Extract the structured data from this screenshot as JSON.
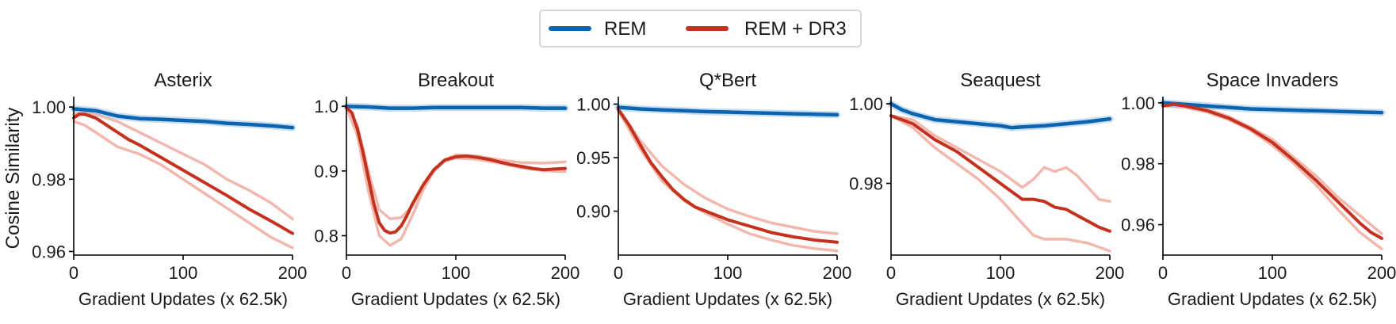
{
  "colors": {
    "rem": "#0a64b0",
    "dr3": "#c4321f",
    "dr3_seed": "#f2b8ae",
    "axis": "#000000"
  },
  "legend": {
    "items": [
      "REM",
      "REM + DR3"
    ]
  },
  "shared": {
    "ylabel": "Cosine Similarity",
    "xlabel": "Gradient Updates (x 62.5k)"
  },
  "chart_data": [
    {
      "type": "line",
      "title": "Asterix",
      "xlabel": "Gradient Updates (x 62.5k)",
      "xlim": [
        0,
        200
      ],
      "ylim": [
        0.959,
        1.002
      ],
      "xticks": [
        0,
        100,
        200
      ],
      "yticks": [
        0.96,
        0.98,
        1.0
      ],
      "ytick_labels": [
        "0.96",
        "0.98",
        "1.00"
      ],
      "series": [
        {
          "name": "REM",
          "x": [
            0,
            20,
            40,
            60,
            80,
            100,
            120,
            140,
            160,
            180,
            200
          ],
          "y": [
            0.9995,
            0.999,
            0.9975,
            0.9968,
            0.9966,
            0.9963,
            0.996,
            0.9955,
            0.9952,
            0.9948,
            0.9943
          ]
        },
        {
          "name": "REM + DR3",
          "x": [
            0,
            5,
            10,
            20,
            30,
            40,
            50,
            60,
            80,
            100,
            120,
            140,
            160,
            180,
            200
          ],
          "y": [
            0.997,
            0.998,
            0.998,
            0.997,
            0.995,
            0.993,
            0.991,
            0.9895,
            0.986,
            0.9825,
            0.979,
            0.9755,
            0.9718,
            0.9685,
            0.965
          ]
        }
      ],
      "seeds": [
        {
          "x": [
            0,
            10,
            20,
            40,
            60,
            80,
            100,
            120,
            140,
            160,
            180,
            200
          ],
          "y": [
            0.998,
            0.9985,
            0.998,
            0.996,
            0.993,
            0.99,
            0.987,
            0.984,
            0.98,
            0.977,
            0.9735,
            0.969
          ]
        },
        {
          "x": [
            0,
            10,
            20,
            40,
            60,
            80,
            100,
            120,
            140,
            160,
            180,
            200
          ],
          "y": [
            0.996,
            0.995,
            0.993,
            0.989,
            0.987,
            0.984,
            0.98,
            0.976,
            0.972,
            0.968,
            0.964,
            0.961
          ]
        }
      ]
    },
    {
      "type": "line",
      "title": "Breakout",
      "xlabel": "Gradient Updates (x 62.5k)",
      "xlim": [
        0,
        200
      ],
      "ylim": [
        0.77,
        1.01
      ],
      "xticks": [
        0,
        100,
        200
      ],
      "yticks": [
        0.8,
        0.9,
        1.0
      ],
      "ytick_labels": [
        "0.8",
        "0.9",
        "1.0"
      ],
      "series": [
        {
          "name": "REM",
          "x": [
            0,
            20,
            40,
            60,
            80,
            100,
            120,
            140,
            160,
            180,
            200
          ],
          "y": [
            1.0,
            0.999,
            0.997,
            0.997,
            0.998,
            0.998,
            0.998,
            0.998,
            0.998,
            0.997,
            0.997
          ]
        },
        {
          "name": "REM + DR3",
          "x": [
            0,
            5,
            10,
            15,
            20,
            25,
            30,
            35,
            40,
            45,
            50,
            55,
            60,
            70,
            80,
            90,
            100,
            110,
            120,
            130,
            140,
            150,
            160,
            170,
            180,
            190,
            200
          ],
          "y": [
            0.998,
            0.99,
            0.965,
            0.93,
            0.89,
            0.85,
            0.82,
            0.808,
            0.804,
            0.806,
            0.815,
            0.83,
            0.848,
            0.878,
            0.902,
            0.917,
            0.922,
            0.923,
            0.921,
            0.918,
            0.914,
            0.91,
            0.907,
            0.904,
            0.902,
            0.903,
            0.904
          ]
        }
      ],
      "seeds": [
        {
          "x": [
            0,
            10,
            20,
            30,
            40,
            50,
            60,
            70,
            80,
            90,
            100,
            120,
            140,
            160,
            180,
            200
          ],
          "y": [
            0.998,
            0.97,
            0.9,
            0.84,
            0.826,
            0.828,
            0.845,
            0.875,
            0.9,
            0.917,
            0.925,
            0.923,
            0.917,
            0.913,
            0.912,
            0.914
          ]
        },
        {
          "x": [
            0,
            10,
            20,
            30,
            40,
            50,
            60,
            70,
            80,
            90,
            100,
            120,
            140,
            160,
            180,
            200
          ],
          "y": [
            0.998,
            0.955,
            0.87,
            0.8,
            0.785,
            0.795,
            0.83,
            0.87,
            0.9,
            0.915,
            0.92,
            0.918,
            0.912,
            0.905,
            0.9,
            0.899
          ]
        }
      ]
    },
    {
      "type": "line",
      "title": "Q*Bert",
      "xlabel": "Gradient Updates (x 62.5k)",
      "xlim": [
        0,
        200
      ],
      "ylim": [
        0.859,
        1.004
      ],
      "xticks": [
        0,
        100,
        200
      ],
      "yticks": [
        0.9,
        0.95,
        1.0
      ],
      "ytick_labels": [
        "0.90",
        "0.95",
        "1.00"
      ],
      "series": [
        {
          "name": "REM",
          "x": [
            0,
            20,
            40,
            60,
            80,
            100,
            120,
            140,
            160,
            180,
            200
          ],
          "y": [
            0.997,
            0.9955,
            0.9945,
            0.9938,
            0.993,
            0.9925,
            0.992,
            0.9915,
            0.991,
            0.9905,
            0.99
          ]
        },
        {
          "name": "REM + DR3",
          "x": [
            0,
            10,
            20,
            30,
            40,
            50,
            60,
            70,
            80,
            90,
            100,
            120,
            140,
            160,
            180,
            200
          ],
          "y": [
            0.995,
            0.98,
            0.962,
            0.945,
            0.932,
            0.92,
            0.911,
            0.904,
            0.9,
            0.896,
            0.892,
            0.886,
            0.88,
            0.876,
            0.873,
            0.871
          ]
        }
      ],
      "seeds": [
        {
          "x": [
            0,
            20,
            40,
            60,
            80,
            100,
            120,
            140,
            160,
            180,
            200
          ],
          "y": [
            0.996,
            0.966,
            0.942,
            0.925,
            0.912,
            0.902,
            0.895,
            0.889,
            0.885,
            0.881,
            0.879
          ]
        },
        {
          "x": [
            0,
            20,
            40,
            60,
            80,
            100,
            120,
            140,
            160,
            180,
            200
          ],
          "y": [
            0.994,
            0.958,
            0.928,
            0.91,
            0.898,
            0.888,
            0.879,
            0.873,
            0.868,
            0.865,
            0.863
          ]
        }
      ]
    },
    {
      "type": "line",
      "title": "Seaquest",
      "xlabel": "Gradient Updates (x 62.5k)",
      "xlim": [
        0,
        200
      ],
      "ylim": [
        0.962,
        1.001
      ],
      "xticks": [
        0,
        100,
        200
      ],
      "yticks": [
        0.98,
        1.0
      ],
      "ytick_labels": [
        "0.98",
        "1.00"
      ],
      "series": [
        {
          "name": "REM",
          "x": [
            0,
            10,
            20,
            40,
            60,
            80,
            100,
            110,
            120,
            140,
            160,
            180,
            200
          ],
          "y": [
            1.0,
            0.9985,
            0.9975,
            0.996,
            0.9955,
            0.995,
            0.9945,
            0.994,
            0.9942,
            0.9945,
            0.995,
            0.9955,
            0.9962
          ]
        },
        {
          "name": "REM + DR3",
          "x": [
            0,
            10,
            20,
            40,
            60,
            80,
            100,
            110,
            120,
            130,
            140,
            150,
            160,
            170,
            180,
            190,
            200
          ],
          "y": [
            0.997,
            0.996,
            0.995,
            0.991,
            0.988,
            0.984,
            0.98,
            0.978,
            0.976,
            0.976,
            0.9755,
            0.974,
            0.9735,
            0.972,
            0.9705,
            0.969,
            0.968
          ]
        }
      ],
      "seeds": [
        {
          "x": [
            0,
            20,
            40,
            60,
            80,
            100,
            120,
            130,
            140,
            150,
            160,
            170,
            180,
            190,
            200
          ],
          "y": [
            0.997,
            0.996,
            0.992,
            0.989,
            0.986,
            0.983,
            0.979,
            0.981,
            0.984,
            0.983,
            0.984,
            0.982,
            0.979,
            0.976,
            0.9755
          ]
        },
        {
          "x": [
            0,
            20,
            40,
            60,
            80,
            100,
            120,
            130,
            140,
            160,
            180,
            200
          ],
          "y": [
            0.997,
            0.994,
            0.989,
            0.985,
            0.981,
            0.976,
            0.97,
            0.967,
            0.966,
            0.966,
            0.965,
            0.963
          ]
        }
      ]
    },
    {
      "type": "line",
      "title": "Space Invaders",
      "xlabel": "Gradient Updates (x 62.5k)",
      "xlim": [
        0,
        200
      ],
      "ylim": [
        0.95,
        1.001
      ],
      "xticks": [
        0,
        100,
        200
      ],
      "yticks": [
        0.96,
        0.98,
        1.0
      ],
      "ytick_labels": [
        "0.96",
        "0.98",
        "1.00"
      ],
      "series": [
        {
          "name": "REM",
          "x": [
            0,
            20,
            40,
            60,
            80,
            100,
            120,
            140,
            160,
            180,
            200
          ],
          "y": [
            1.0,
            0.9995,
            0.999,
            0.9985,
            0.998,
            0.9978,
            0.9976,
            0.9974,
            0.9972,
            0.997,
            0.9968
          ]
        },
        {
          "name": "REM + DR3",
          "x": [
            0,
            10,
            20,
            40,
            60,
            80,
            100,
            120,
            140,
            160,
            180,
            190,
            200
          ],
          "y": [
            0.999,
            0.9995,
            0.999,
            0.9975,
            0.995,
            0.9915,
            0.987,
            0.981,
            0.9745,
            0.9675,
            0.9605,
            0.9575,
            0.9555
          ]
        }
      ],
      "seeds": [
        {
          "x": [
            0,
            20,
            40,
            60,
            80,
            100,
            120,
            140,
            160,
            180,
            200
          ],
          "y": [
            0.999,
            0.999,
            0.998,
            0.9955,
            0.992,
            0.988,
            0.982,
            0.976,
            0.969,
            0.963,
            0.957
          ]
        },
        {
          "x": [
            0,
            20,
            40,
            60,
            80,
            100,
            120,
            140,
            160,
            180,
            200
          ],
          "y": [
            0.999,
            0.9985,
            0.997,
            0.9945,
            0.991,
            0.986,
            0.98,
            0.973,
            0.965,
            0.9575,
            0.952
          ]
        }
      ]
    }
  ]
}
